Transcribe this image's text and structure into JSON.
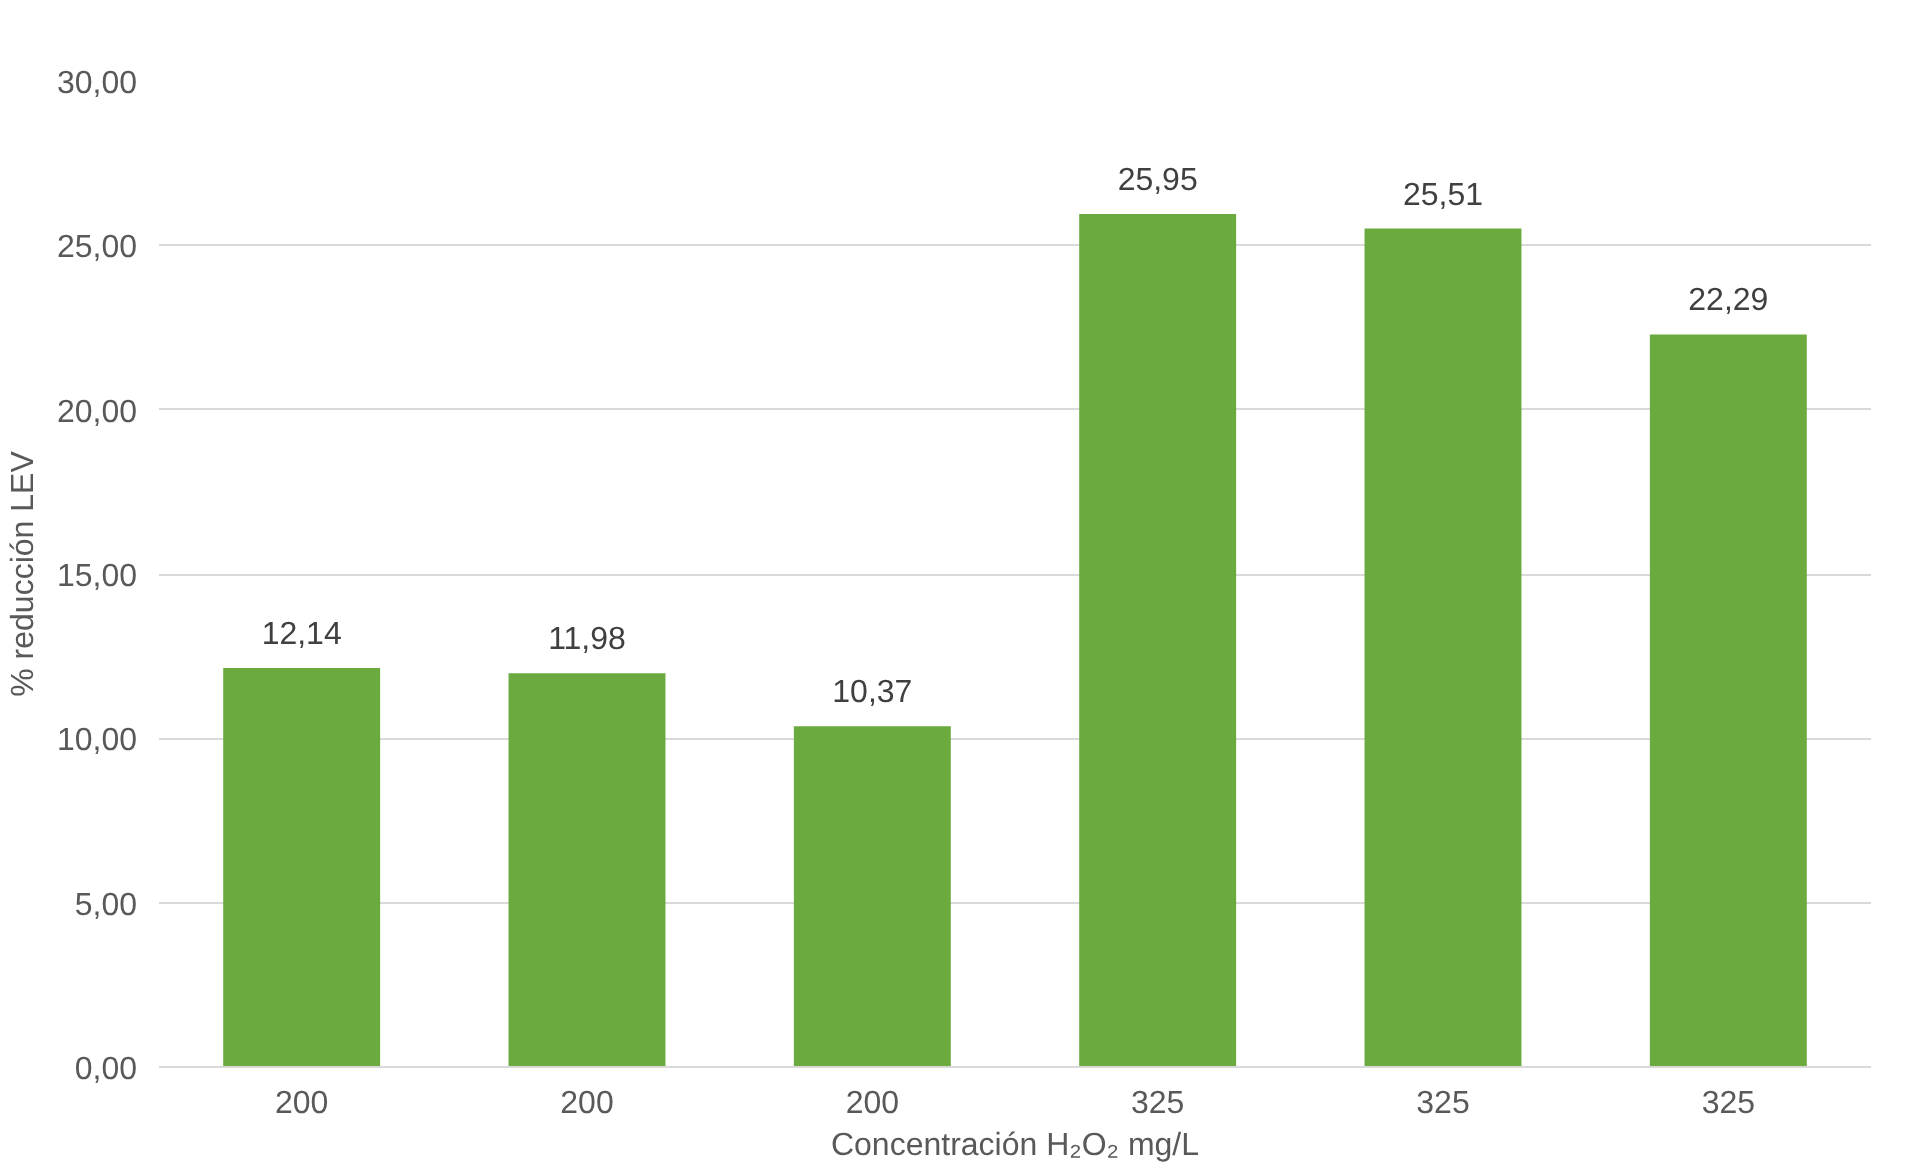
{
  "chart_data": {
    "type": "bar",
    "xlabel": "Concentración H₂O₂ mg/L",
    "ylabel": "% reducción LEV",
    "categories": [
      "200",
      "200",
      "200",
      "325",
      "325",
      "325"
    ],
    "values": [
      12.14,
      11.98,
      10.37,
      25.95,
      25.51,
      22.29
    ],
    "value_labels": [
      "12,14",
      "11,98",
      "10,37",
      "25,95",
      "25,51",
      "22,29"
    ],
    "color": "#6aaa3e",
    "ylim": [
      0,
      30
    ],
    "yticks": [
      {
        "value": 0,
        "label": "0,00"
      },
      {
        "value": 5,
        "label": "5,00"
      },
      {
        "value": 10,
        "label": "10,00"
      },
      {
        "value": 15,
        "label": "15,00"
      },
      {
        "value": 20,
        "label": "20,00"
      },
      {
        "value": 25,
        "label": "25,00"
      },
      {
        "value": 30,
        "label": "30,00"
      }
    ],
    "grid": "y"
  }
}
